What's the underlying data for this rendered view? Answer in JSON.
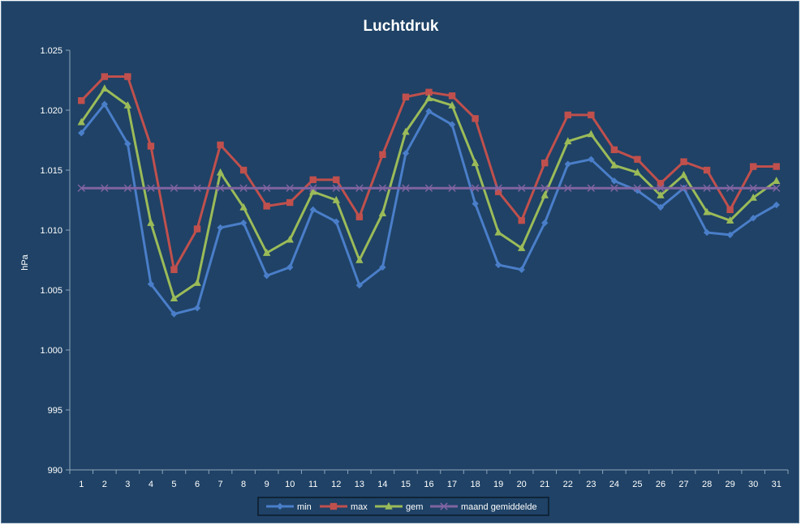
{
  "chart_data": {
    "type": "line",
    "title": "Luchtdruk",
    "xlabel": "",
    "ylabel": "hPa",
    "ylim": [
      990,
      1025
    ],
    "yticks": [
      990,
      995,
      1000,
      1005,
      1010,
      1015,
      1020,
      1025
    ],
    "ytick_labels": [
      "990",
      "995",
      "1.000",
      "1.005",
      "1.010",
      "1.015",
      "1.020",
      "1.025"
    ],
    "categories": [
      "1",
      "2",
      "3",
      "4",
      "5",
      "6",
      "7",
      "8",
      "9",
      "10",
      "11",
      "12",
      "13",
      "14",
      "15",
      "16",
      "17",
      "18",
      "19",
      "20",
      "21",
      "22",
      "23",
      "24",
      "25",
      "26",
      "27",
      "28",
      "29",
      "30",
      "31"
    ],
    "grid": false,
    "legend_placement": "bottom",
    "series": [
      {
        "name": "min",
        "color": "#4a7ec9",
        "marker": "diamond",
        "values": [
          1018.1,
          1020.5,
          1017.2,
          1005.5,
          1003.0,
          1003.5,
          1010.2,
          1010.6,
          1006.2,
          1006.9,
          1011.7,
          1010.7,
          1005.4,
          1006.9,
          1016.4,
          1019.9,
          1018.8,
          1012.2,
          1007.1,
          1006.7,
          1010.6,
          1015.5,
          1015.9,
          1014.1,
          1013.3,
          1011.9,
          1013.5,
          1009.8,
          1009.6,
          1011.0,
          1012.1
        ]
      },
      {
        "name": "max",
        "color": "#c0504d",
        "marker": "square",
        "values": [
          1020.8,
          1022.8,
          1022.8,
          1017.0,
          1006.7,
          1010.1,
          1017.1,
          1015.0,
          1012.0,
          1012.3,
          1014.2,
          1014.2,
          1011.1,
          1016.3,
          1021.1,
          1021.5,
          1021.2,
          1019.3,
          1013.2,
          1010.8,
          1015.6,
          1019.6,
          1019.6,
          1016.7,
          1015.9,
          1013.9,
          1015.7,
          1015.0,
          1011.7,
          1015.3,
          1015.3
        ]
      },
      {
        "name": "gem",
        "color": "#9bbb59",
        "marker": "triangle",
        "values": [
          1019.0,
          1021.8,
          1020.4,
          1010.6,
          1004.3,
          1005.6,
          1014.8,
          1011.9,
          1008.1,
          1009.2,
          1013.2,
          1012.5,
          1007.5,
          1011.4,
          1018.2,
          1021.0,
          1020.4,
          1015.6,
          1009.8,
          1008.5,
          1012.9,
          1017.4,
          1018.0,
          1015.4,
          1014.8,
          1012.9,
          1014.6,
          1011.5,
          1010.8,
          1012.7,
          1014.1
        ]
      },
      {
        "name": "maand gemiddelde",
        "color": "#8064a2",
        "marker": "x",
        "values": [
          1013.5,
          1013.5,
          1013.5,
          1013.5,
          1013.5,
          1013.5,
          1013.5,
          1013.5,
          1013.5,
          1013.5,
          1013.5,
          1013.5,
          1013.5,
          1013.5,
          1013.5,
          1013.5,
          1013.5,
          1013.5,
          1013.5,
          1013.5,
          1013.5,
          1013.5,
          1013.5,
          1013.5,
          1013.5,
          1013.5,
          1013.5,
          1013.5,
          1013.5,
          1013.5,
          1013.5
        ]
      }
    ]
  },
  "colors": {
    "background": "#1f4266",
    "axis": "#8fa5bb",
    "text": "#ffffff"
  }
}
